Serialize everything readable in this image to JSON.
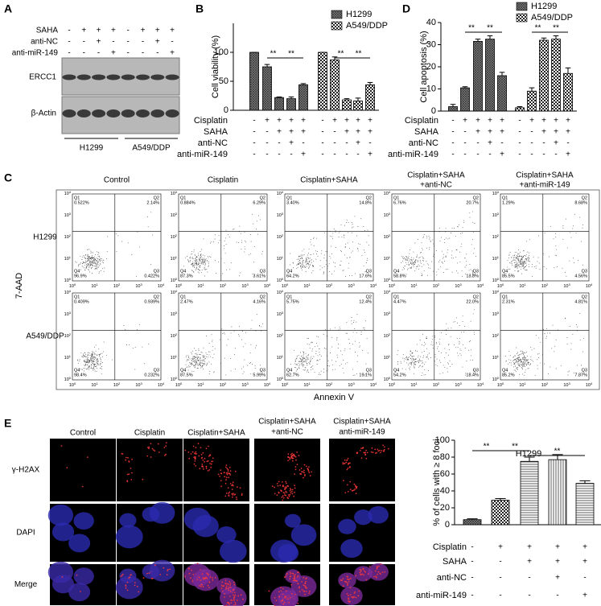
{
  "panel_labels": [
    "A",
    "B",
    "C",
    "D",
    "E"
  ],
  "blot": {
    "row_labels": [
      "SAHA",
      "anti-NC",
      "anti-miR-149"
    ],
    "rows": [
      [
        "-",
        "+",
        "+",
        "+",
        "-",
        "+",
        "+",
        "+"
      ],
      [
        "-",
        "-",
        "+",
        "-",
        "-",
        "-",
        "+",
        "-"
      ],
      [
        "-",
        "-",
        "-",
        "+",
        "-",
        "-",
        "-",
        "+"
      ]
    ],
    "bands": [
      "ERCC1",
      "β-Actin"
    ],
    "cell_lines": [
      "H1299",
      "A549/DDP"
    ]
  },
  "chart_data": [
    {
      "type": "bar",
      "y_label": "Cell viability (%)",
      "ylim": [
        0,
        150
      ],
      "yticks": [
        0,
        50,
        100
      ],
      "legend": "top-right",
      "conditions": {
        "labels": [
          "Cisplatin",
          "SAHA",
          "anti-NC",
          "anti-miR-149"
        ],
        "rows": [
          [
            "-",
            "+",
            "+",
            "+",
            "+"
          ],
          [
            "-",
            "-",
            "+",
            "+",
            "+"
          ],
          [
            "-",
            "-",
            "-",
            "+",
            "-"
          ],
          [
            "-",
            "-",
            "-",
            "-",
            "+"
          ]
        ]
      },
      "series": [
        {
          "name": "H1299",
          "pattern": "crosshatch",
          "values": [
            100,
            75,
            22,
            20,
            44
          ],
          "errors": [
            0,
            4,
            1,
            3,
            2
          ]
        },
        {
          "name": "A549/DDP",
          "pattern": "checker",
          "values": [
            100,
            87,
            18,
            16,
            44
          ],
          "errors": [
            0,
            5,
            2,
            5,
            4
          ]
        }
      ],
      "significance": [
        {
          "series": 0,
          "from": 1,
          "to": 2,
          "label": "**"
        },
        {
          "series": 0,
          "from": 2,
          "to": 4,
          "label": "**"
        },
        {
          "series": 1,
          "from": 1,
          "to": 2,
          "label": "**"
        },
        {
          "series": 1,
          "from": 2,
          "to": 4,
          "label": "**"
        }
      ]
    },
    {
      "type": "bar",
      "y_label": "Cell apoptosis (%)",
      "ylim": [
        0,
        40
      ],
      "yticks": [
        0,
        10,
        20,
        30,
        40
      ],
      "legend": "top-right",
      "conditions": {
        "labels": [
          "Cisplatin",
          "SAHA",
          "anti-NC",
          "anti-miR-149"
        ],
        "rows": [
          [
            "-",
            "+",
            "+",
            "+",
            "+"
          ],
          [
            "-",
            "-",
            "+",
            "+",
            "+"
          ],
          [
            "-",
            "-",
            "-",
            "+",
            "-"
          ],
          [
            "-",
            "-",
            "-",
            "-",
            "+"
          ]
        ]
      },
      "series": [
        {
          "name": "H1299",
          "pattern": "crosshatch",
          "values": [
            2,
            10.5,
            31.5,
            32.5,
            16
          ],
          "errors": [
            1,
            0.5,
            1,
            1.5,
            1.5
          ]
        },
        {
          "name": "A549/DDP",
          "pattern": "checker",
          "values": [
            1.5,
            9,
            32,
            32.5,
            17
          ],
          "errors": [
            0.5,
            1.5,
            1,
            1.5,
            2.5
          ]
        }
      ],
      "significance": [
        {
          "series": 0,
          "from": 1,
          "to": 2,
          "label": "**"
        },
        {
          "series": 0,
          "from": 2,
          "to": 4,
          "label": "**"
        },
        {
          "series": 1,
          "from": 1,
          "to": 2,
          "label": "**"
        },
        {
          "series": 1,
          "from": 2,
          "to": 4,
          "label": "**"
        }
      ]
    },
    {
      "type": "bar",
      "title": "H1299",
      "y_label": "% of cells with ≥ 8 foci",
      "ylim": [
        0,
        100
      ],
      "yticks": [
        0,
        20,
        40,
        60,
        80,
        100
      ],
      "conditions": {
        "labels": [
          "Cisplatin",
          "SAHA",
          "anti-NC",
          "anti-miR-149"
        ],
        "rows": [
          [
            "-",
            "+",
            "+",
            "+",
            "+"
          ],
          [
            "-",
            "-",
            "+",
            "+",
            "+"
          ],
          [
            "-",
            "-",
            "-",
            "+",
            "-"
          ],
          [
            "-",
            "-",
            "-",
            "-",
            "+"
          ]
        ]
      },
      "series": [
        {
          "patterns": [
            "crosshatch",
            "checker",
            "horizontal",
            "vertical",
            "horizontal"
          ],
          "values": [
            6,
            29,
            75,
            77,
            49
          ],
          "errors": [
            1,
            2,
            5,
            6,
            3
          ]
        }
      ],
      "significance": [
        {
          "series": 0,
          "from": 0,
          "to": 1,
          "label": "**"
        },
        {
          "series": 0,
          "from": 1,
          "to": 2,
          "label": "**"
        },
        {
          "series": 0,
          "from": 2,
          "to": 4,
          "label": "**"
        }
      ]
    }
  ],
  "flow": {
    "column_titles": [
      [
        "Control"
      ],
      [
        "Cisplatin"
      ],
      [
        "Cisplatin+SAHA"
      ],
      [
        "Cisplatin+SAHA",
        "+anti-NC"
      ],
      [
        "Cisplatin+SAHA",
        "+anti-miR-149"
      ]
    ],
    "row_labels": [
      "H1299",
      "A549/DDP"
    ],
    "y_label": "7-AAD",
    "x_label": "Annexin V",
    "quadrant_names": [
      "Q1",
      "Q2",
      "Q3",
      "Q4"
    ],
    "axis_base": "10",
    "axis_exponents": [
      0,
      1,
      2,
      3,
      4
    ],
    "quadrants": [
      [
        [
          "0.522%",
          "2.14%",
          "0.422%",
          "96.9%"
        ],
        [
          "0.884%",
          "6.29%",
          "3.61%",
          "87.3%"
        ],
        [
          "3.40%",
          "14.8%",
          "17.6%",
          "64.2%"
        ],
        [
          "6.76%",
          "20.7%",
          "13.8%",
          "58.8%"
        ],
        [
          "1.29%",
          "8.68%",
          "4.56%",
          "85.5%"
        ]
      ],
      [
        [
          "0.409%",
          "0.939%",
          "0.232%",
          "98.4%"
        ],
        [
          "2.47%",
          "4.16%",
          "5.99%",
          "87.5%"
        ],
        [
          "5.75%",
          "12.4%",
          "19.1%",
          "62.7%"
        ],
        [
          "4.47%",
          "22.0%",
          "18.4%",
          "54.2%"
        ],
        [
          "2.31%",
          "4.81%",
          "7.87%",
          "85.2%"
        ]
      ]
    ]
  },
  "microscopy": {
    "column_titles": [
      [
        "Control"
      ],
      [
        "Cisplatin"
      ],
      [
        "Cisplatin+SAHA"
      ],
      [
        "Cisplatin+SAHA",
        "+anti-NC"
      ],
      [
        "Cisplatin+SAHA",
        "anti-miR-149"
      ]
    ],
    "row_labels": [
      "γ-H2AX",
      "DAPI",
      "Merge"
    ]
  }
}
